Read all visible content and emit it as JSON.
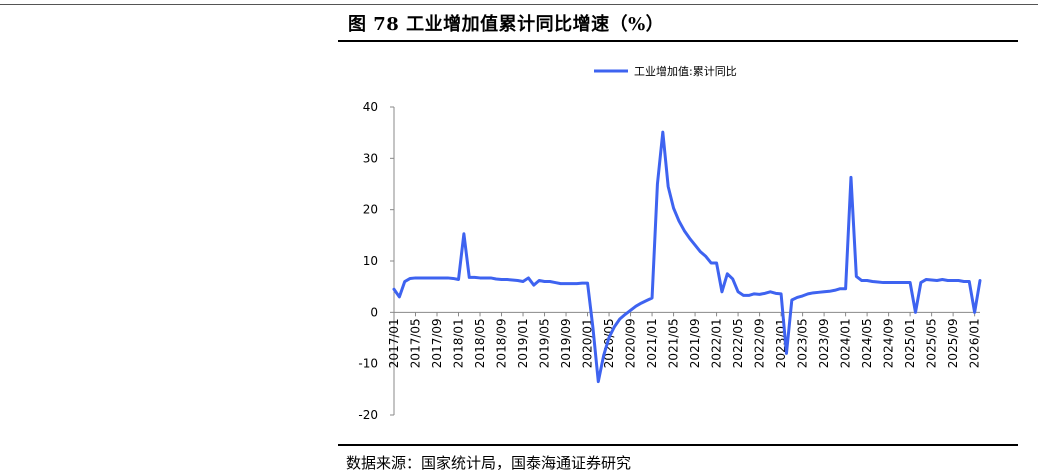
{
  "figure": {
    "title": "图 78  工业增加值累计同比增速（%）",
    "source": "数据来源：国家统计局，国泰海通证券研究"
  },
  "chart_data": {
    "type": "line",
    "title": "",
    "xlabel": "",
    "ylabel": "",
    "ylim": [
      -20,
      40
    ],
    "yticks": [
      -20,
      -10,
      0,
      10,
      20,
      30,
      40
    ],
    "grid": false,
    "legend": {
      "placement": "top-center"
    },
    "x_tick_labels": [
      "2017/01",
      "2017/05",
      "2017/09",
      "2018/01",
      "2018/05",
      "2018/09",
      "2019/01",
      "2019/05",
      "2019/09",
      "2020/01",
      "2020/05",
      "2020/09",
      "2021/01",
      "2021/05",
      "2021/09",
      "2022/01",
      "2022/05",
      "2022/09",
      "2023/01",
      "2023/05",
      "2023/09",
      "2024/01",
      "2024/05",
      "2024/09",
      "2025/01",
      "2025/05",
      "2025/09",
      "2026/01"
    ],
    "series": [
      {
        "name": "工业增加值:累计同比",
        "color": "#3e63f0",
        "points": [
          [
            "2017/01",
            4.5
          ],
          [
            "2017/02",
            3.0
          ],
          [
            "2017/03",
            6.0
          ],
          [
            "2017/04",
            6.6
          ],
          [
            "2017/05",
            6.7
          ],
          [
            "2017/06",
            6.7
          ],
          [
            "2017/07",
            6.7
          ],
          [
            "2017/08",
            6.7
          ],
          [
            "2017/09",
            6.7
          ],
          [
            "2017/10",
            6.7
          ],
          [
            "2017/11",
            6.7
          ],
          [
            "2017/12",
            6.6
          ],
          [
            "2018/01",
            6.4
          ],
          [
            "2018/02",
            15.3
          ],
          [
            "2018/03",
            6.8
          ],
          [
            "2018/04",
            6.8
          ],
          [
            "2018/05",
            6.7
          ],
          [
            "2018/06",
            6.7
          ],
          [
            "2018/07",
            6.7
          ],
          [
            "2018/08",
            6.5
          ],
          [
            "2018/09",
            6.4
          ],
          [
            "2018/10",
            6.4
          ],
          [
            "2018/11",
            6.3
          ],
          [
            "2018/12",
            6.2
          ],
          [
            "2019/01",
            6.0
          ],
          [
            "2019/02",
            6.7
          ],
          [
            "2019/03",
            5.3
          ],
          [
            "2019/04",
            6.2
          ],
          [
            "2019/05",
            6.0
          ],
          [
            "2019/06",
            6.0
          ],
          [
            "2019/07",
            5.8
          ],
          [
            "2019/08",
            5.6
          ],
          [
            "2019/09",
            5.6
          ],
          [
            "2019/10",
            5.6
          ],
          [
            "2019/11",
            5.6
          ],
          [
            "2019/12",
            5.7
          ],
          [
            "2020/01",
            5.7
          ],
          [
            "2020/02",
            -3.0
          ],
          [
            "2020/03",
            -13.5
          ],
          [
            "2020/04",
            -8.4
          ],
          [
            "2020/05",
            -4.9
          ],
          [
            "2020/06",
            -2.8
          ],
          [
            "2020/07",
            -1.3
          ],
          [
            "2020/08",
            -0.4
          ],
          [
            "2020/09",
            0.4
          ],
          [
            "2020/10",
            1.2
          ],
          [
            "2020/11",
            1.8
          ],
          [
            "2020/12",
            2.3
          ],
          [
            "2021/01",
            2.8
          ],
          [
            "2021/02",
            25.0
          ],
          [
            "2021/03",
            35.1
          ],
          [
            "2021/04",
            24.5
          ],
          [
            "2021/05",
            20.3
          ],
          [
            "2021/06",
            17.8
          ],
          [
            "2021/07",
            15.9
          ],
          [
            "2021/08",
            14.4
          ],
          [
            "2021/09",
            13.1
          ],
          [
            "2021/10",
            11.8
          ],
          [
            "2021/11",
            10.9
          ],
          [
            "2021/12",
            9.6
          ],
          [
            "2022/01",
            9.6
          ],
          [
            "2022/02",
            4.0
          ],
          [
            "2022/03",
            7.5
          ],
          [
            "2022/04",
            6.5
          ],
          [
            "2022/05",
            4.0
          ],
          [
            "2022/06",
            3.3
          ],
          [
            "2022/07",
            3.3
          ],
          [
            "2022/08",
            3.6
          ],
          [
            "2022/09",
            3.5
          ],
          [
            "2022/10",
            3.7
          ],
          [
            "2022/11",
            4.0
          ],
          [
            "2022/12",
            3.7
          ],
          [
            "2023/01",
            3.6
          ],
          [
            "2023/02",
            -8.0
          ],
          [
            "2023/03",
            2.4
          ],
          [
            "2023/04",
            2.9
          ],
          [
            "2023/05",
            3.2
          ],
          [
            "2023/06",
            3.6
          ],
          [
            "2023/07",
            3.8
          ],
          [
            "2023/08",
            3.9
          ],
          [
            "2023/09",
            4.0
          ],
          [
            "2023/10",
            4.1
          ],
          [
            "2023/11",
            4.3
          ],
          [
            "2023/12",
            4.6
          ],
          [
            "2024/01",
            4.6
          ],
          [
            "2024/02",
            26.3
          ],
          [
            "2024/03",
            7.0
          ],
          [
            "2024/04",
            6.2
          ],
          [
            "2024/05",
            6.2
          ],
          [
            "2024/06",
            6.0
          ],
          [
            "2024/07",
            5.9
          ],
          [
            "2024/08",
            5.8
          ],
          [
            "2024/09",
            5.8
          ],
          [
            "2024/10",
            5.8
          ],
          [
            "2024/11",
            5.8
          ],
          [
            "2024/12",
            5.8
          ],
          [
            "2025/01",
            5.8
          ],
          [
            "2025/02",
            0.0
          ],
          [
            "2025/03",
            5.8
          ],
          [
            "2025/04",
            6.4
          ],
          [
            "2025/05",
            6.3
          ],
          [
            "2025/06",
            6.2
          ],
          [
            "2025/07",
            6.4
          ],
          [
            "2025/08",
            6.2
          ],
          [
            "2025/09",
            6.2
          ],
          [
            "2025/10",
            6.2
          ],
          [
            "2025/11",
            6.0
          ],
          [
            "2025/12",
            6.0
          ],
          [
            "2026/01",
            0.0
          ],
          [
            "2026/02",
            6.2
          ]
        ]
      }
    ]
  }
}
